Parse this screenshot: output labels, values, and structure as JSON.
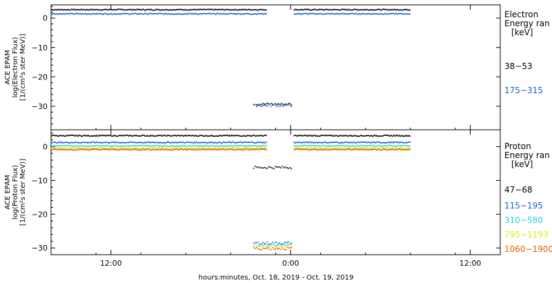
{
  "chart_data": {
    "type": "scatter",
    "xlabel": "hours:minutes, Oct. 18, 2019 - Oct. 19, 2019",
    "x_ticks": [
      "12:00",
      "0:00",
      "12:00"
    ],
    "x_tick_hours": [
      -12,
      0,
      12
    ],
    "xlim": [
      -16,
      14
    ],
    "data_hours": [
      -16,
      8
    ],
    "gap_hours": [
      -1.6,
      0.2
    ],
    "panels": [
      {
        "id": "electron",
        "ylabel_lines": [
          "ACE EPAM",
          "log(Electron Flux)",
          "[1/(cm²s ster MeV)]"
        ],
        "ylim": [
          -38,
          4.5
        ],
        "y_ticks": [
          0,
          -10,
          -20,
          -30
        ],
        "y_tick_labels": [
          "0",
          "−10",
          "−20",
          "−30"
        ],
        "legend_title_lines": [
          "Electron",
          "Energy ran",
          "[keV]"
        ],
        "series": [
          {
            "name": "38−53",
            "color": "#000000",
            "level": 2.8,
            "gap_level": -29.3
          },
          {
            "name": "175−315",
            "color": "#1a5bd6",
            "level": 1.4,
            "gap_level": -29.8
          }
        ]
      },
      {
        "id": "proton",
        "ylabel_lines": [
          "ACE EPAM",
          "log(Proton Flux)",
          "[1/(cm²s ster MeV)]"
        ],
        "ylim": [
          -32,
          5
        ],
        "y_ticks": [
          0,
          -10,
          -20,
          -30
        ],
        "y_tick_labels": [
          "0",
          "−10",
          "−20",
          "−30"
        ],
        "legend_title_lines": [
          "Proton",
          "Energy ran",
          "[keV]"
        ],
        "series": [
          {
            "name": "47−68",
            "color": "#000000",
            "level": 3.2,
            "gap_level": -6.2
          },
          {
            "name": "115−195",
            "color": "#1a5bd6",
            "level": 1.2,
            "gap_level": -28.6
          },
          {
            "name": "310−580",
            "color": "#2ad4e0",
            "level": 0.2,
            "gap_level": -29.2
          },
          {
            "name": "795−1193",
            "color": "#e6e619",
            "level": -0.5,
            "gap_level": -29.6
          },
          {
            "name": "1060−1900",
            "color": "#e65c00",
            "level": -0.9,
            "gap_level": -30.2
          }
        ]
      }
    ]
  }
}
